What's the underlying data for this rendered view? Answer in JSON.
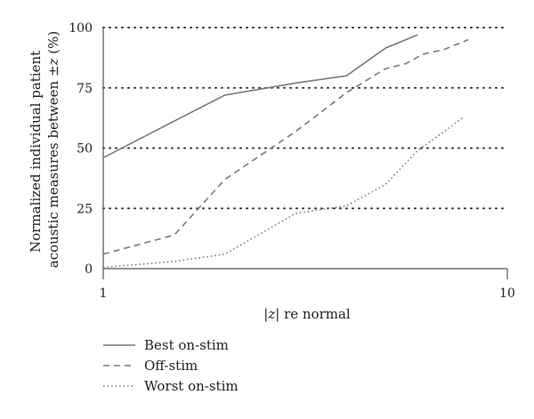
{
  "chart_data": {
    "type": "line",
    "xscale": "log",
    "xlim": [
      1,
      10
    ],
    "ylim": [
      0,
      100
    ],
    "x_ticks": [
      "1",
      "10"
    ],
    "y_ticks": [
      "0",
      "25",
      "50",
      "75",
      "100"
    ],
    "grid": "horizontal dotted",
    "legend_position": "bottom-left",
    "xlabel_parts": {
      "pre": "|",
      "var": "z",
      "post": "| re normal"
    },
    "ylabel_lines": [
      {
        "pre": "Normalized individual patient",
        "var": "",
        "post": ""
      },
      {
        "pre": "acoustic measures between ±",
        "var": "z",
        "post": " (%)"
      }
    ],
    "series": [
      {
        "name": "Best on-stim",
        "style": "solid",
        "color": "#7a7a7a",
        "points": [
          [
            1.0,
            46
          ],
          [
            1.45,
            60
          ],
          [
            2.0,
            72
          ],
          [
            3.0,
            77
          ],
          [
            4.0,
            80
          ],
          [
            5.0,
            91.5
          ],
          [
            6.0,
            97
          ]
        ]
      },
      {
        "name": "Off-stim",
        "style": "dashed",
        "color": "#7a7a7a",
        "points": [
          [
            1.0,
            6
          ],
          [
            1.5,
            14
          ],
          [
            2.0,
            37
          ],
          [
            3.0,
            57
          ],
          [
            4.0,
            73
          ],
          [
            5.0,
            83
          ],
          [
            5.6,
            85
          ],
          [
            6.2,
            89
          ],
          [
            7.0,
            91
          ],
          [
            8.0,
            95
          ]
        ]
      },
      {
        "name": "Worst on-stim",
        "style": "dotted",
        "color": "#7a7a7a",
        "points": [
          [
            1.0,
            0.5
          ],
          [
            1.5,
            3
          ],
          [
            2.0,
            6
          ],
          [
            3.0,
            23
          ],
          [
            4.0,
            26
          ],
          [
            5.0,
            35
          ],
          [
            6.0,
            49
          ],
          [
            7.0,
            57
          ],
          [
            7.8,
            63
          ]
        ]
      }
    ]
  }
}
